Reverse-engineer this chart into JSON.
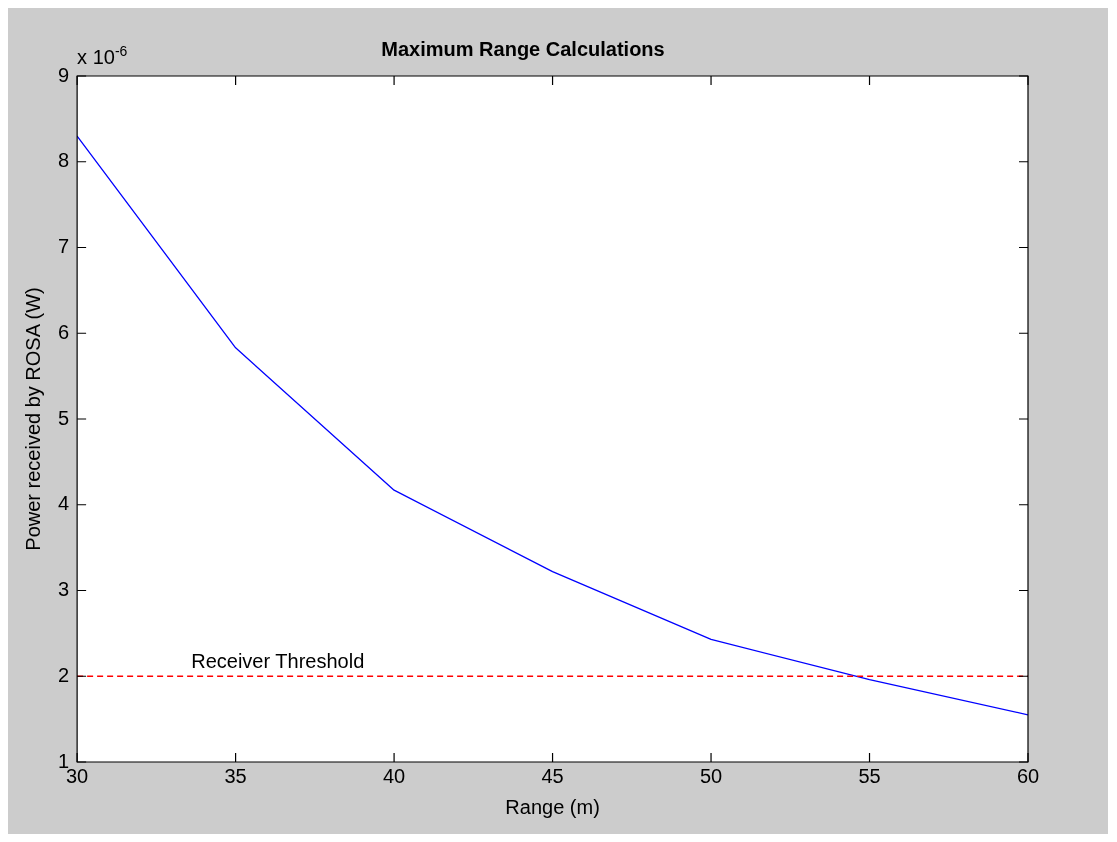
{
  "chart_data": {
    "type": "line",
    "title": "Maximum Range Calculations",
    "xlabel": "Range (m)",
    "ylabel": "Power received by ROSA (W)",
    "x": [
      30,
      35,
      40,
      45,
      50,
      55,
      60
    ],
    "series": [
      {
        "color": "#0000ff",
        "values": [
          8.3,
          5.83,
          4.17,
          3.22,
          2.43,
          1.96,
          1.55
        ]
      }
    ],
    "xlim": [
      30,
      60
    ],
    "xticks": [
      30,
      35,
      40,
      45,
      50,
      55,
      60
    ],
    "ylim": [
      1,
      9
    ],
    "yticks": [
      1,
      2,
      3,
      4,
      5,
      6,
      7,
      8,
      9
    ],
    "ref_lines": [
      {
        "axis": "y",
        "value": 2,
        "label": "Receiver Threshold",
        "color": "#ff0000",
        "line_style": "dashed"
      }
    ],
    "annotations": [
      "x 10$^{-6}$"
    ],
    "grid": false,
    "legend": false,
    "marker": "none",
    "line_style": "solid"
  }
}
